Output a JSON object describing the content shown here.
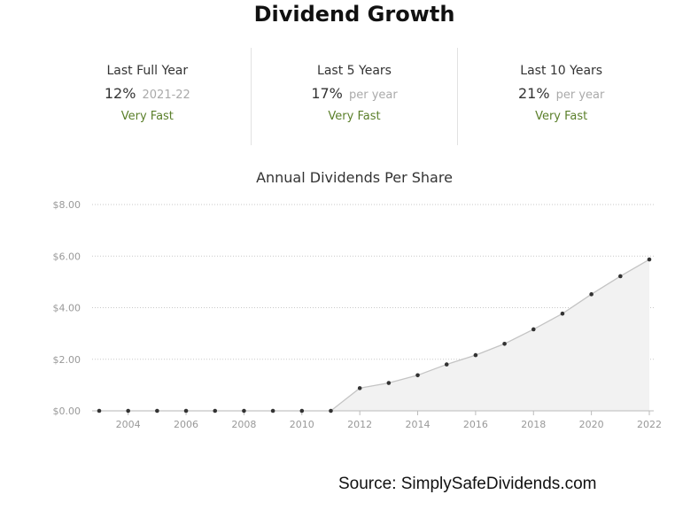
{
  "page": {
    "title": "Dividend Growth",
    "source": "Source: SimplySafeDividends.com"
  },
  "stats": [
    {
      "label": "Last Full Year",
      "value": "12%",
      "note": "2021-22",
      "rating": "Very Fast"
    },
    {
      "label": "Last 5 Years",
      "value": "17%",
      "note": "per year",
      "rating": "Very Fast"
    },
    {
      "label": "Last 10 Years",
      "value": "21%",
      "note": "per year",
      "rating": "Very Fast"
    }
  ],
  "colors": {
    "rating": "#5a7f2a",
    "line": "#c4c4c4",
    "area": "#f2f2f2",
    "point": "#333333",
    "grid": "#c8c8c8"
  },
  "chart_data": {
    "type": "area",
    "title": "Annual Dividends Per Share",
    "x": [
      2003,
      2004,
      2005,
      2006,
      2007,
      2008,
      2009,
      2010,
      2011,
      2012,
      2013,
      2014,
      2015,
      2016,
      2017,
      2018,
      2019,
      2020,
      2021,
      2022
    ],
    "values": [
      0,
      0,
      0,
      0,
      0,
      0,
      0,
      0,
      0,
      0.88,
      1.08,
      1.38,
      1.8,
      2.16,
      2.6,
      3.16,
      3.77,
      4.52,
      5.22,
      5.87
    ],
    "xticks": [
      "2004",
      "2006",
      "2008",
      "2010",
      "2012",
      "2014",
      "2016",
      "2018",
      "2020",
      "2022"
    ],
    "yticks": [
      "$0.00",
      "$2.00",
      "$4.00",
      "$6.00",
      "$8.00"
    ],
    "ylim": [
      0,
      8
    ],
    "grid": true,
    "legend": "none"
  }
}
